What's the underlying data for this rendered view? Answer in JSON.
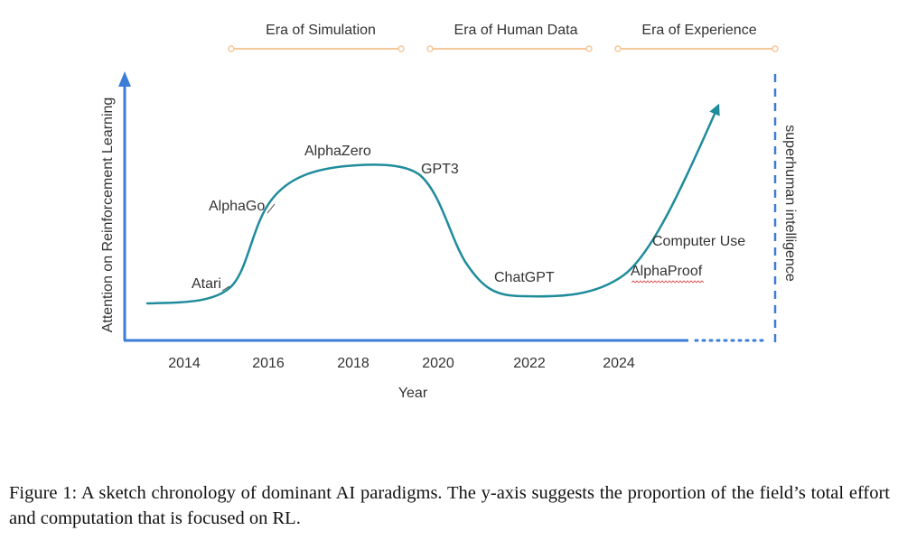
{
  "eras": [
    {
      "label": "Era of Simulation"
    },
    {
      "label": "Era of Human Data"
    },
    {
      "label": "Era of Experience"
    }
  ],
  "axes": {
    "ylabel": "Attention on Reinforcement Learning",
    "xlabel": "Year",
    "x_ticks": [
      "2014",
      "2016",
      "2018",
      "2020",
      "2022",
      "2024"
    ],
    "right_label": "superhuman intelligence"
  },
  "milestones": [
    {
      "label": "Atari"
    },
    {
      "label": "AlphaGo"
    },
    {
      "label": "AlphaZero"
    },
    {
      "label": "GPT3"
    },
    {
      "label": "ChatGPT"
    },
    {
      "label": "AlphaProof"
    },
    {
      "label": "Computer Use"
    }
  ],
  "colors": {
    "axis": "#3b7dd8",
    "curve": "#1f8c9c",
    "era_line": "#f5c89a",
    "spellcheck": "#e04040"
  },
  "caption": "Figure 1: A sketch chronology of dominant AI paradigms. The y-axis suggests the proportion of the field’s total effort and computation that is focused on RL."
}
